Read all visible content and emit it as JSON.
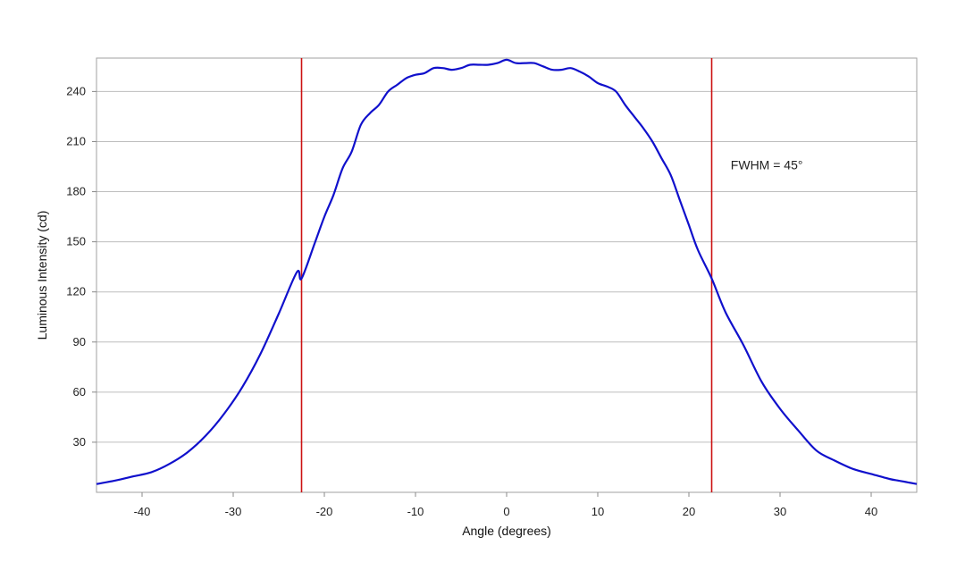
{
  "chart_data": {
    "type": "line",
    "title": "",
    "xlabel": "Angle (degrees)",
    "ylabel": "Luminous Intensity (cd)",
    "xlim": [
      -45,
      45
    ],
    "ylim": [
      0,
      260
    ],
    "x_ticks": [
      -40,
      -30,
      -20,
      -10,
      0,
      10,
      20,
      30,
      40
    ],
    "y_ticks": [
      30,
      60,
      90,
      120,
      150,
      180,
      210,
      240
    ],
    "grid": "horizontal",
    "series": [
      {
        "color": "#1010cc",
        "x": [
          -45,
          -43,
          -41,
          -39,
          -37,
          -35,
          -33,
          -31,
          -29,
          -27,
          -25,
          -23,
          -22.5,
          -21,
          -20,
          -19,
          -18,
          -17,
          -16,
          -15,
          -14,
          -13,
          -12,
          -11,
          -10,
          -9,
          -8,
          -7,
          -6,
          -5,
          -4,
          -3,
          -2,
          -1,
          0,
          1,
          2,
          3,
          4,
          5,
          6,
          7,
          8,
          9,
          10,
          11,
          12,
          13,
          14,
          15,
          16,
          17,
          18,
          19,
          20,
          21,
          22.5,
          24,
          26,
          28,
          30,
          32,
          34,
          36,
          38,
          40,
          42,
          43,
          44,
          45
        ],
        "y": [
          5,
          7,
          9.5,
          12,
          17,
          24,
          34,
          47,
          63,
          83,
          107,
          132,
          128,
          150,
          165,
          178,
          194,
          204,
          220,
          227,
          232,
          240,
          244,
          248,
          250,
          251,
          254,
          254,
          253,
          254,
          256,
          256,
          256,
          257,
          259,
          257,
          257,
          257,
          255,
          253,
          253,
          254,
          252,
          249,
          245,
          243,
          240,
          232,
          225,
          218,
          210,
          200,
          190,
          175,
          160,
          145,
          128,
          108,
          88,
          66,
          50,
          37,
          25,
          19,
          14,
          11,
          8,
          7,
          6,
          5
        ]
      }
    ],
    "vertical_lines": [
      {
        "x": -22.5,
        "color": "#cc1111"
      },
      {
        "x": 22.5,
        "color": "#cc1111"
      }
    ],
    "annotations": [
      {
        "text": "FWHM = 45°",
        "x": 24,
        "y": 196
      }
    ]
  }
}
